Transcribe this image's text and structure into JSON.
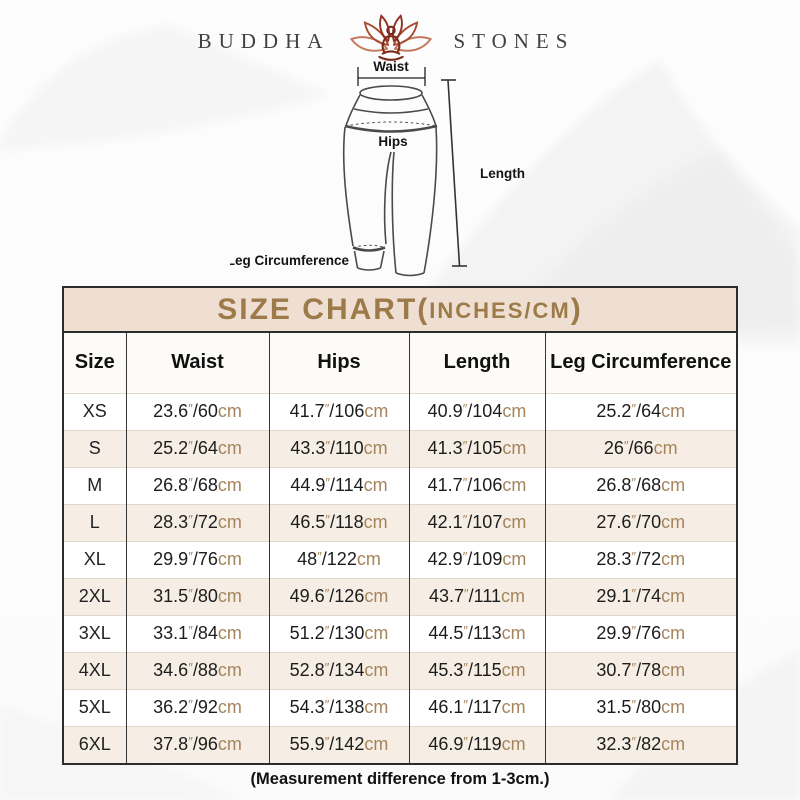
{
  "brand": {
    "left": "BUDDHA",
    "right": "STONES",
    "icon": "lotus-meditation"
  },
  "diagram": {
    "waist_label": "Waist",
    "hips_label": "Hips",
    "length_label": "Length",
    "leg_label": "Leg Circumference"
  },
  "table": {
    "title_main": "SIZE CHART(",
    "title_unit": "INCHES/CM",
    "title_close": ")",
    "headers": [
      "Size",
      "Waist",
      "Hips",
      "Length",
      "Leg Circumference"
    ],
    "rows": [
      {
        "size": "XS",
        "cells": [
          [
            "23.6",
            "60"
          ],
          [
            "41.7",
            "106"
          ],
          [
            "40.9",
            "104"
          ],
          [
            "25.2",
            "64"
          ]
        ]
      },
      {
        "size": "S",
        "cells": [
          [
            "25.2",
            "64"
          ],
          [
            "43.3",
            "110"
          ],
          [
            "41.3",
            "105"
          ],
          [
            "26",
            "66"
          ]
        ]
      },
      {
        "size": "M",
        "cells": [
          [
            "26.8",
            "68"
          ],
          [
            "44.9",
            "114"
          ],
          [
            "41.7",
            "106"
          ],
          [
            "26.8",
            "68"
          ]
        ]
      },
      {
        "size": "L",
        "cells": [
          [
            "28.3",
            "72"
          ],
          [
            "46.5",
            "118"
          ],
          [
            "42.1",
            "107"
          ],
          [
            "27.6",
            "70"
          ]
        ]
      },
      {
        "size": "XL",
        "cells": [
          [
            "29.9",
            "76"
          ],
          [
            "48",
            "122"
          ],
          [
            "42.9",
            "109"
          ],
          [
            "28.3",
            "72"
          ]
        ]
      },
      {
        "size": "2XL",
        "cells": [
          [
            "31.5",
            "80"
          ],
          [
            "49.6",
            "126"
          ],
          [
            "43.7",
            "111"
          ],
          [
            "29.1",
            "74"
          ]
        ]
      },
      {
        "size": "3XL",
        "cells": [
          [
            "33.1",
            "84"
          ],
          [
            "51.2",
            "130"
          ],
          [
            "44.5",
            "113"
          ],
          [
            "29.9",
            "76"
          ]
        ]
      },
      {
        "size": "4XL",
        "cells": [
          [
            "34.6",
            "88"
          ],
          [
            "52.8",
            "134"
          ],
          [
            "45.3",
            "115"
          ],
          [
            "30.7",
            "78"
          ]
        ]
      },
      {
        "size": "5XL",
        "cells": [
          [
            "36.2",
            "92"
          ],
          [
            "54.3",
            "138"
          ],
          [
            "46.1",
            "117"
          ],
          [
            "31.5",
            "80"
          ]
        ]
      },
      {
        "size": "6XL",
        "cells": [
          [
            "37.8",
            "96"
          ],
          [
            "55.9",
            "142"
          ],
          [
            "46.9",
            "119"
          ],
          [
            "32.3",
            "82"
          ]
        ]
      }
    ]
  },
  "units": {
    "inch_mark": "″",
    "separator": "/",
    "cm": "cm"
  },
  "footer": {
    "note": "(Measurement difference from 1-3cm.)"
  },
  "colors": {
    "title_bg": "#efdfd3",
    "title_text": "#9c7b49",
    "unit_text": "#a5845c",
    "row_alt_bg": "#f6eee4",
    "border_dark": "#2c2c2c",
    "grid_light": "#e0d7cb",
    "brand_text": "#414141"
  },
  "chart_data": {
    "type": "table",
    "title": "SIZE CHART(INCHES/CM)",
    "columns": [
      "Size",
      "Waist",
      "Hips",
      "Length",
      "Leg Circumference"
    ],
    "rows": [
      [
        "XS",
        "23.6″/60cm",
        "41.7″/106cm",
        "40.9″/104cm",
        "25.2″/64cm"
      ],
      [
        "S",
        "25.2″/64cm",
        "43.3″/110cm",
        "41.3″/105cm",
        "26″/66cm"
      ],
      [
        "M",
        "26.8″/68cm",
        "44.9″/114cm",
        "41.7″/106cm",
        "26.8″/68cm"
      ],
      [
        "L",
        "28.3″/72cm",
        "46.5″/118cm",
        "42.1″/107cm",
        "27.6″/70cm"
      ],
      [
        "XL",
        "29.9″/76cm",
        "48″/122cm",
        "42.9″/109cm",
        "28.3″/72cm"
      ],
      [
        "2XL",
        "31.5″/80cm",
        "49.6″/126cm",
        "43.7″/111cm",
        "29.1″/74cm"
      ],
      [
        "3XL",
        "33.1″/84cm",
        "51.2″/130cm",
        "44.5″/113cm",
        "29.9″/76cm"
      ],
      [
        "4XL",
        "34.6″/88cm",
        "52.8″/134cm",
        "45.3″/115cm",
        "30.7″/78cm"
      ],
      [
        "5XL",
        "36.2″/92cm",
        "54.3″/138cm",
        "46.1″/117cm",
        "31.5″/80cm"
      ],
      [
        "6XL",
        "37.8″/96cm",
        "55.9″/142cm",
        "46.9″/119cm",
        "32.3″/82cm"
      ]
    ],
    "note": "(Measurement difference from 1-3cm.)"
  }
}
